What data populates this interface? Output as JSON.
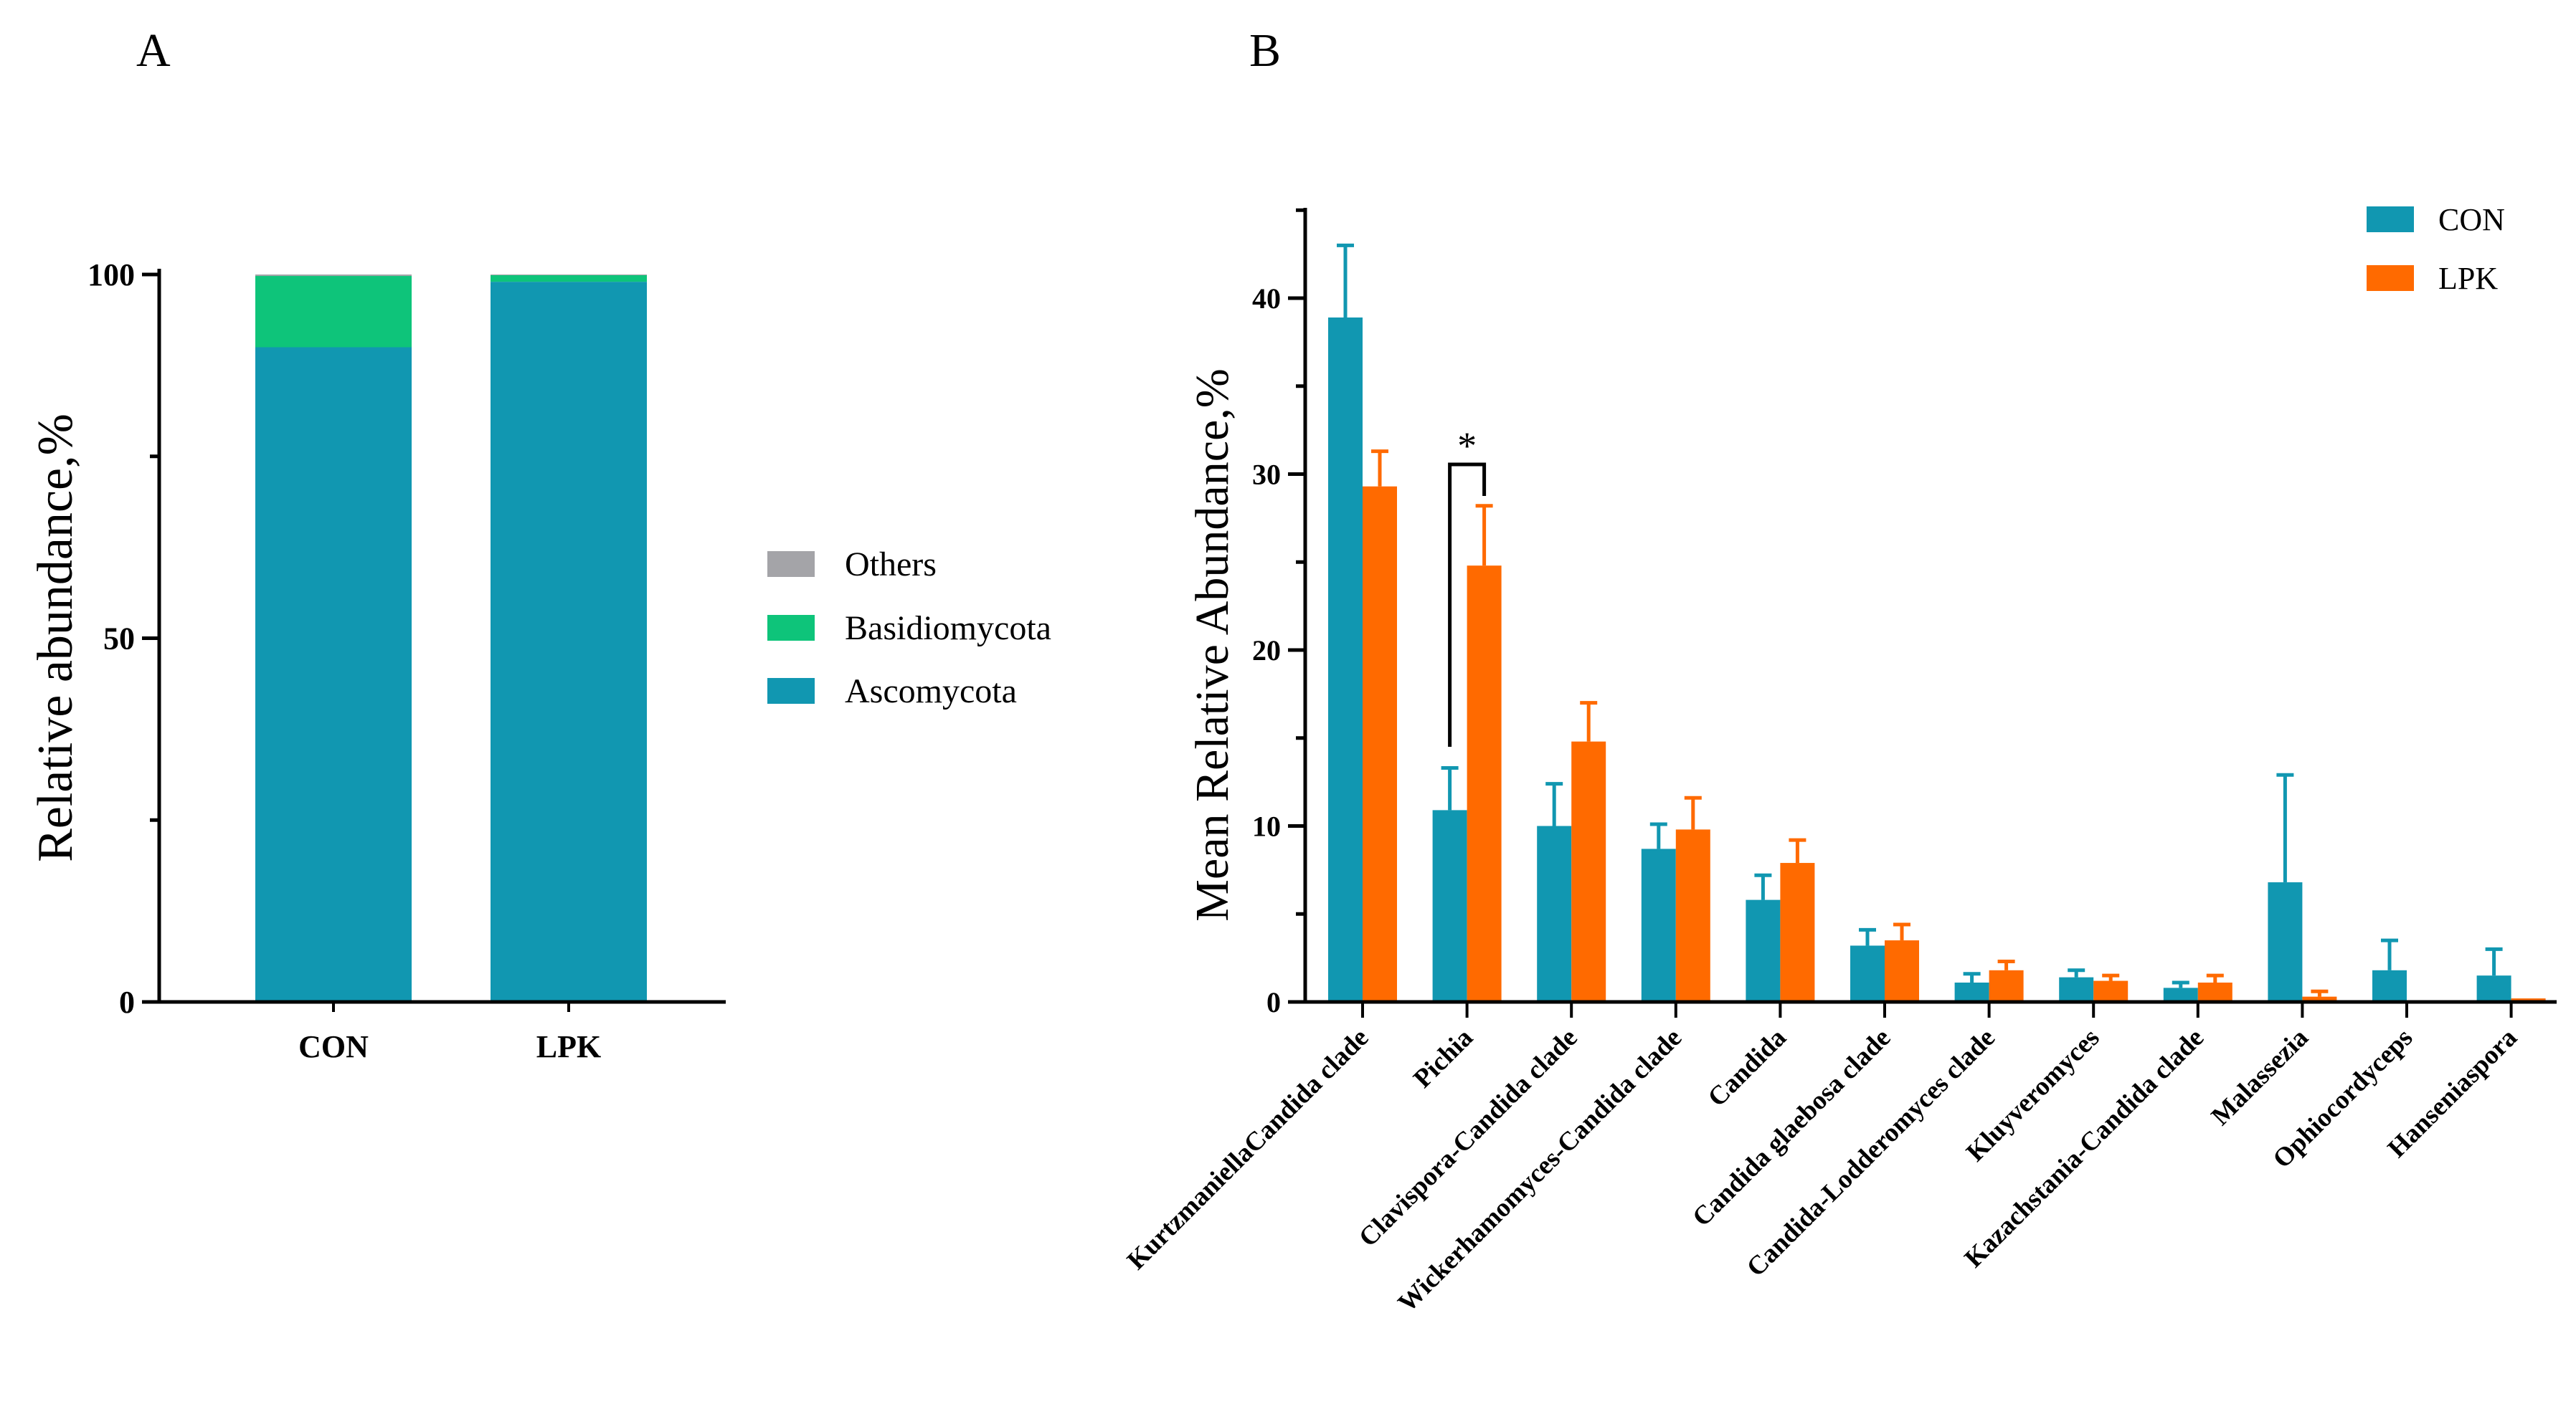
{
  "panels": {
    "a_label": "A",
    "b_label": "B"
  },
  "colors": {
    "ascomycota": "#1197B1",
    "basidiomycota": "#0EC47A",
    "others": "#A4A4A8",
    "con": "#1197B1",
    "lpk": "#FF6A00",
    "axis": "#000000"
  },
  "chart_data": [
    {
      "panel": "A",
      "type": "bar",
      "stacked": true,
      "categories": [
        "CON",
        "LPK"
      ],
      "ylabel": "Relative abundance,%",
      "xlabel": "",
      "ylim": [
        0,
        100
      ],
      "yticks": [
        0,
        50,
        100
      ],
      "legend_position": "right",
      "series": [
        {
          "name": "Ascomycota",
          "color_key": "ascomycota",
          "values": [
            90,
            99
          ]
        },
        {
          "name": "Basidiomycota",
          "color_key": "basidiomycota",
          "values": [
            9.8,
            0.9
          ]
        },
        {
          "name": "Others",
          "color_key": "others",
          "values": [
            0.2,
            0.1
          ]
        }
      ],
      "legend_order": [
        "Others",
        "Basidiomycota",
        "Ascomycota"
      ]
    },
    {
      "panel": "B",
      "type": "bar",
      "grouped": true,
      "categories": [
        "KurtzmaniellaCandida clade",
        "Pichia",
        "Clavispora-Candida clade",
        "Wickerhamomyces-Candida clade",
        "Candida",
        "Candida glaebosa clade",
        "Candida-Lodderomyces clade",
        "Kluyveromyces",
        "Kazachstania-Candida clade",
        "Malassezia",
        "Ophiocordyceps",
        "Hanseniaspora"
      ],
      "ylabel": "Mean Relative Abundance,%",
      "xlabel": "",
      "ylim": [
        0,
        45
      ],
      "yticks": [
        0,
        10,
        20,
        30,
        40
      ],
      "legend_position": "top-right",
      "series": [
        {
          "name": "CON",
          "color_key": "con",
          "values": [
            38.9,
            10.9,
            10.0,
            8.7,
            5.8,
            3.2,
            1.1,
            1.4,
            0.8,
            6.8,
            1.8,
            1.5
          ],
          "errors": [
            4.1,
            2.4,
            2.4,
            1.4,
            1.4,
            0.9,
            0.5,
            0.4,
            0.3,
            6.1,
            1.7,
            1.5
          ]
        },
        {
          "name": "LPK",
          "color_key": "lpk",
          "values": [
            29.3,
            24.8,
            14.8,
            9.8,
            7.9,
            3.5,
            1.8,
            1.2,
            1.1,
            0.3,
            0.05,
            0.2
          ],
          "errors": [
            2.0,
            3.4,
            2.2,
            1.8,
            1.3,
            0.9,
            0.5,
            0.3,
            0.4,
            0.3,
            0.0,
            0.0
          ]
        }
      ],
      "annotations": [
        {
          "category_index": 1,
          "text": "*",
          "type": "significance-bracket"
        }
      ]
    }
  ]
}
